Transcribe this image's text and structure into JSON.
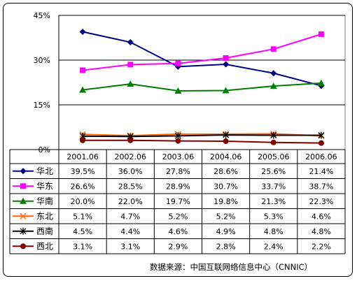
{
  "chart_data": {
    "type": "line",
    "categories": [
      "2001.06",
      "2002.06",
      "2003.06",
      "2004.06",
      "2005.06",
      "2006.06"
    ],
    "ylim": [
      0,
      45
    ],
    "y_ticks": [
      "0%",
      "15%",
      "30%",
      "45%"
    ],
    "y_tick_values": [
      0,
      15,
      30,
      45
    ],
    "grid": "horizontal",
    "legend": "data-table",
    "series": [
      {
        "name": "华北",
        "color": "#000080",
        "marker": "diamond",
        "values": [
          39.5,
          36.0,
          27.8,
          28.6,
          25.6,
          21.4
        ],
        "labels": [
          "39.5%",
          "36.0%",
          "27.8%",
          "28.6%",
          "25.6%",
          "21.4%"
        ]
      },
      {
        "name": "华东",
        "color": "#ff00ff",
        "marker": "square",
        "values": [
          26.6,
          28.5,
          28.9,
          30.7,
          33.7,
          38.7
        ],
        "labels": [
          "26.6%",
          "28.5%",
          "28.9%",
          "30.7%",
          "33.7%",
          "38.7%"
        ]
      },
      {
        "name": "华南",
        "color": "#008000",
        "marker": "triangle",
        "values": [
          20.0,
          22.0,
          19.7,
          19.8,
          21.3,
          22.3
        ],
        "labels": [
          "20.0%",
          "22.0%",
          "19.7%",
          "19.8%",
          "21.3%",
          "22.3%"
        ]
      },
      {
        "name": "东北",
        "color": "#ff6600",
        "marker": "x",
        "values": [
          5.1,
          4.7,
          5.2,
          5.2,
          5.3,
          4.6
        ],
        "labels": [
          "5.1%",
          "4.7%",
          "5.2%",
          "5.2%",
          "5.3%",
          "4.6%"
        ]
      },
      {
        "name": "西南",
        "color": "#000000",
        "marker": "asterisk",
        "values": [
          4.5,
          4.4,
          4.6,
          4.9,
          4.8,
          4.8
        ],
        "labels": [
          "4.5%",
          "4.4%",
          "4.6%",
          "4.9%",
          "4.8%",
          "4.8%"
        ]
      },
      {
        "name": "西北",
        "color": "#800000",
        "marker": "circle",
        "values": [
          3.1,
          3.1,
          2.9,
          2.8,
          2.4,
          2.2
        ],
        "labels": [
          "3.1%",
          "3.1%",
          "2.9%",
          "2.8%",
          "2.4%",
          "2.2%"
        ]
      }
    ]
  },
  "source_note": "数据来源：中国互联网络信息中心（CNNIC）"
}
